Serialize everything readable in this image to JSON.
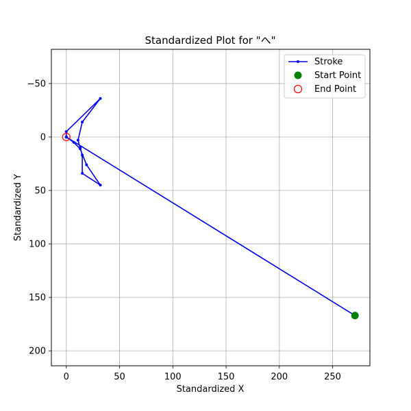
{
  "chart_data": {
    "type": "line",
    "title": "Standardized Plot for \"へ\"",
    "xlabel": "Standardized X",
    "ylabel": "Standardized Y",
    "xlim": [
      -14,
      285
    ],
    "ylim": [
      -82,
      214
    ],
    "y_inverted": true,
    "x_ticks": [
      0,
      50,
      100,
      150,
      200,
      250
    ],
    "y_ticks": [
      -50,
      0,
      50,
      100,
      150,
      200
    ],
    "x_tick_labels": [
      "0",
      "50",
      "100",
      "150",
      "200",
      "250"
    ],
    "y_tick_labels": [
      "−50",
      "0",
      "50",
      "100",
      "150",
      "200"
    ],
    "grid": true,
    "legend_position": "top-right",
    "series": [
      {
        "name": "Stroke",
        "color": "#0000ee",
        "x": [
          271,
          0,
          7,
          13,
          19,
          32,
          15,
          15,
          13,
          11,
          15,
          32,
          0,
          0
        ],
        "y": [
          167,
          0,
          5,
          11,
          26,
          45,
          34,
          17,
          10,
          3,
          -14,
          -36,
          -5,
          0
        ]
      }
    ],
    "start_point": {
      "name": "Start Point",
      "x": 271,
      "y": 167,
      "color": "#008000"
    },
    "end_point": {
      "name": "End Point",
      "x": 0,
      "y": 0,
      "color": "#ff0000"
    }
  }
}
